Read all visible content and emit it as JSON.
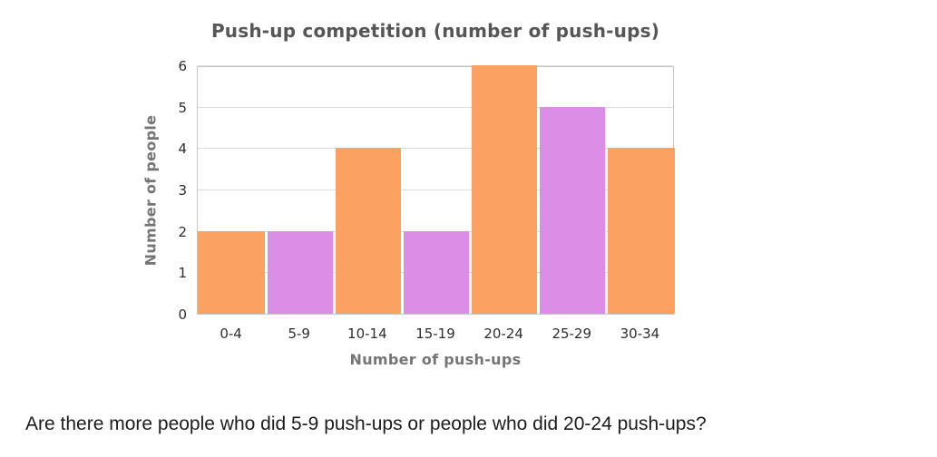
{
  "chart_data": {
    "type": "bar",
    "title": "Push-up competition (number of push-ups)",
    "xlabel": "Number of push-ups",
    "ylabel": "Number of people",
    "categories": [
      "0-4",
      "5-9",
      "10-14",
      "15-19",
      "20-24",
      "25-29",
      "30-34"
    ],
    "values": [
      2,
      2,
      4,
      2,
      6,
      5,
      4
    ],
    "bar_colors": [
      "#FBA161",
      "#DC8EE6",
      "#FBA161",
      "#DC8EE6",
      "#FBA161",
      "#DC8EE6",
      "#FBA161"
    ],
    "ylim": [
      0,
      6
    ],
    "yticks": [
      0,
      1,
      2,
      3,
      4,
      5,
      6
    ],
    "grid": "horizontal",
    "legend": "none"
  },
  "question": {
    "text": "Are there more people who did 5-9 push-ups or people who did 20-24 push-ups?"
  },
  "colors": {
    "orange": "#FBA161",
    "purple": "#DC8EE6",
    "gridline": "#DCDCDC",
    "plot_border": "#C8C8C8",
    "title_text": "#565656",
    "axis_title_text": "#757575",
    "tick_text": "#2E2E2E",
    "question_text": "#1C1C1C"
  }
}
